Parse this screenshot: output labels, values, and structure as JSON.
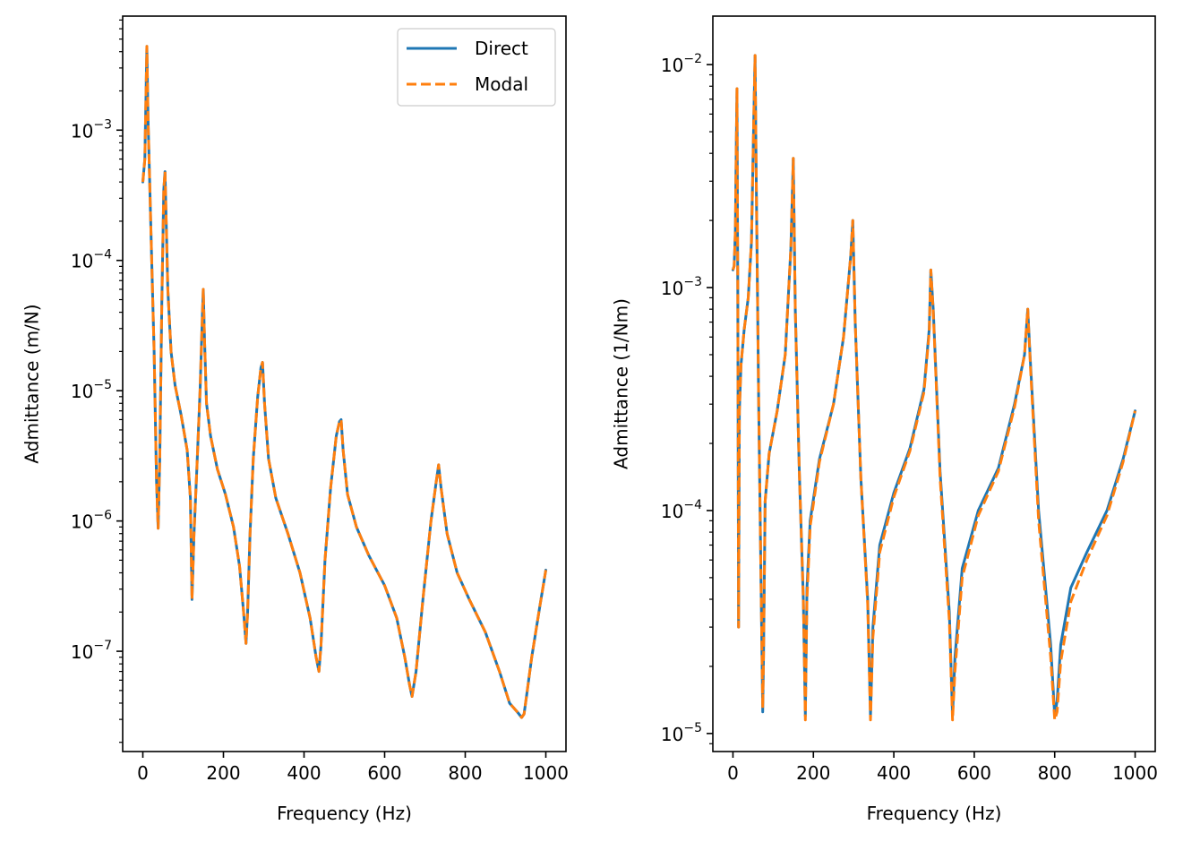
{
  "chart_data": [
    {
      "type": "line",
      "xlabel": "Frequency (Hz)",
      "ylabel": "Admittance (m/N)",
      "xlim": [
        -50,
        1050
      ],
      "ylim": [
        1.7e-08,
        0.0075
      ],
      "yscale": "log",
      "xticks": [
        0,
        200,
        400,
        600,
        800,
        1000
      ],
      "xtick_labels": [
        "0",
        "200",
        "400",
        "600",
        "800",
        "1000"
      ],
      "yticks_major": [
        {
          "value": 1e-07,
          "base": "10",
          "exp": "−7"
        },
        {
          "value": 1e-06,
          "base": "10",
          "exp": "−6"
        },
        {
          "value": 1e-05,
          "base": "10",
          "exp": "−5"
        },
        {
          "value": 0.0001,
          "base": "10",
          "exp": "−4"
        },
        {
          "value": 0.001,
          "base": "10",
          "exp": "−3"
        }
      ],
      "grid": false,
      "legend": {
        "placement": "upper-right",
        "entries": [
          "Direct",
          "Modal"
        ]
      },
      "series": [
        {
          "name": "Direct",
          "color": "#1f77b4",
          "style": "solid",
          "x": [
            0,
            5,
            10,
            13,
            17,
            22,
            28,
            34,
            38,
            42,
            47,
            52,
            55,
            58,
            62,
            70,
            80,
            95,
            110,
            118,
            122,
            127,
            134,
            142,
            148,
            150,
            153,
            158,
            168,
            185,
            205,
            225,
            240,
            250,
            256,
            260,
            266,
            274,
            285,
            293,
            297,
            302,
            312,
            330,
            360,
            390,
            415,
            430,
            437,
            442,
            452,
            466,
            480,
            488,
            492,
            497,
            508,
            530,
            560,
            600,
            630,
            650,
            662,
            668,
            678,
            695,
            715,
            728,
            734,
            740,
            755,
            780,
            810,
            850,
            885,
            910,
            930,
            940,
            946,
            952,
            965,
            985,
            1000
          ],
          "y": [
            0.0004,
            0.0006,
            0.0044,
            0.0012,
            0.0004,
            0.0001,
            2e-05,
            2e-06,
            8.8e-07,
            3e-06,
            4.5e-05,
            0.00035,
            0.00048,
            0.0002,
            6e-05,
            2e-05,
            1.1e-05,
            6.5e-06,
            3.5e-06,
            1.5e-06,
            2.5e-07,
            8e-07,
            2.5e-06,
            1e-05,
            4e-05,
            6e-05,
            2.5e-05,
            8e-06,
            4.5e-06,
            2.5e-06,
            1.6e-06,
            9e-07,
            4.5e-07,
            2e-07,
            1.15e-07,
            2e-07,
            8e-07,
            3e-06,
            9e-06,
            1.5e-05,
            1.65e-05,
            8e-06,
            3e-06,
            1.5e-06,
            8e-07,
            4e-07,
            1.8e-07,
            9e-08,
            7e-08,
            1.1e-07,
            5e-07,
            1.8e-06,
            4.5e-06,
            5.8e-06,
            6e-06,
            3.5e-06,
            1.6e-06,
            9e-07,
            5.5e-07,
            3.2e-07,
            1.8e-07,
            9e-08,
            5.5e-08,
            4.5e-08,
            7e-08,
            2.5e-07,
            1e-06,
            2e-06,
            2.7e-06,
            1.8e-06,
            8e-07,
            4e-07,
            2.5e-07,
            1.4e-07,
            7e-08,
            4e-08,
            3.4e-08,
            3.1e-08,
            3.3e-08,
            4.5e-08,
            9e-08,
            2.2e-07,
            4.2e-07
          ]
        },
        {
          "name": "Modal",
          "color": "#ff7f0e",
          "style": "dashed",
          "x": [
            0,
            5,
            10,
            13,
            17,
            22,
            28,
            34,
            38,
            42,
            47,
            52,
            55,
            58,
            62,
            70,
            80,
            95,
            110,
            118,
            122,
            127,
            134,
            142,
            148,
            150,
            153,
            158,
            168,
            185,
            205,
            225,
            240,
            250,
            256,
            260,
            266,
            274,
            285,
            293,
            297,
            302,
            312,
            330,
            360,
            390,
            415,
            430,
            437,
            442,
            452,
            466,
            480,
            488,
            492,
            497,
            508,
            530,
            560,
            600,
            630,
            650,
            662,
            668,
            678,
            695,
            715,
            728,
            734,
            740,
            755,
            780,
            810,
            850,
            885,
            910,
            930,
            940,
            946,
            952,
            965,
            985,
            1000
          ],
          "y": [
            0.0004,
            0.0006,
            0.0044,
            0.0012,
            0.0004,
            0.0001,
            2e-05,
            2e-06,
            8.8e-07,
            3e-06,
            4.5e-05,
            0.00035,
            0.00048,
            0.0002,
            6e-05,
            2e-05,
            1.1e-05,
            6.5e-06,
            3.5e-06,
            1.5e-06,
            2.5e-07,
            8e-07,
            2.5e-06,
            1e-05,
            4e-05,
            6e-05,
            2.5e-05,
            8e-06,
            4.5e-06,
            2.5e-06,
            1.6e-06,
            9e-07,
            4.5e-07,
            2e-07,
            1.15e-07,
            2e-07,
            8e-07,
            3e-06,
            9e-06,
            1.5e-05,
            1.65e-05,
            8e-06,
            3e-06,
            1.5e-06,
            8e-07,
            4e-07,
            1.8e-07,
            9e-08,
            7e-08,
            1.1e-07,
            5e-07,
            1.8e-06,
            4.5e-06,
            5.8e-06,
            6e-06,
            3.5e-06,
            1.6e-06,
            9e-07,
            5.5e-07,
            3.2e-07,
            1.8e-07,
            9e-08,
            5.5e-08,
            4.5e-08,
            7e-08,
            2.5e-07,
            1e-06,
            2e-06,
            2.7e-06,
            1.8e-06,
            8e-07,
            4e-07,
            2.5e-07,
            1.4e-07,
            7e-08,
            4e-08,
            3.4e-08,
            3.1e-08,
            3.3e-08,
            4.5e-08,
            9e-08,
            2.2e-07,
            4.2e-07
          ]
        }
      ]
    },
    {
      "type": "line",
      "xlabel": "Frequency (Hz)",
      "ylabel": "Admittance (1/Nm)",
      "xlim": [
        -50,
        1050
      ],
      "ylim": [
        8.3e-06,
        0.0165
      ],
      "yscale": "log",
      "xticks": [
        0,
        200,
        400,
        600,
        800,
        1000
      ],
      "xtick_labels": [
        "0",
        "200",
        "400",
        "600",
        "800",
        "1000"
      ],
      "yticks_major": [
        {
          "value": 1e-05,
          "base": "10",
          "exp": "−5"
        },
        {
          "value": 0.0001,
          "base": "10",
          "exp": "−4"
        },
        {
          "value": 0.001,
          "base": "10",
          "exp": "−3"
        },
        {
          "value": 0.01,
          "base": "10",
          "exp": "−2"
        }
      ],
      "grid": false,
      "series": [
        {
          "name": "Direct",
          "color": "#1f77b4",
          "style": "solid",
          "x": [
            0,
            3,
            6,
            8,
            10,
            12,
            14,
            16,
            20,
            28,
            38,
            46,
            52,
            55,
            58,
            64,
            70,
            74,
            76,
            80,
            90,
            110,
            130,
            144,
            150,
            155,
            165,
            175,
            180,
            184,
            192,
            215,
            250,
            275,
            293,
            298,
            304,
            318,
            335,
            342,
            348,
            365,
            400,
            440,
            475,
            488,
            492,
            498,
            515,
            538,
            546,
            552,
            570,
            610,
            660,
            700,
            725,
            733,
            740,
            760,
            790,
            800,
            806,
            815,
            840,
            880,
            930,
            970,
            1000
          ],
          "y": [
            0.0012,
            0.00125,
            0.0018,
            0.004,
            0.0078,
            0.001,
            3e-05,
            0.00028,
            0.00045,
            0.00065,
            0.0009,
            0.0016,
            0.006,
            0.011,
            0.003,
            0.0003,
            4.5e-05,
            1.25e-05,
            2.2e-05,
            0.00011,
            0.00018,
            0.00028,
            0.0005,
            0.0015,
            0.0038,
            0.0008,
            0.00015,
            4e-05,
            1.2e-05,
            4.5e-05,
            9e-05,
            0.00017,
            0.0003,
            0.0006,
            0.0014,
            0.002,
            0.0007,
            0.00014,
            4e-05,
            1.2e-05,
            3e-05,
            7e-05,
            0.00012,
            0.00019,
            0.00035,
            0.00065,
            0.0012,
            0.0008,
            0.00015,
            3.5e-05,
            1.2e-05,
            2.2e-05,
            5.5e-05,
            0.0001,
            0.000155,
            0.0003,
            0.0005,
            0.0008,
            0.00045,
            0.0001,
            2.5e-05,
            1.2e-05,
            1.4e-05,
            2.5e-05,
            4.5e-05,
            6.5e-05,
            0.0001,
            0.00017,
            0.00028
          ]
        },
        {
          "name": "Modal",
          "color": "#ff7f0e",
          "style": "dashed",
          "x": [
            0,
            3,
            6,
            8,
            10,
            12,
            14,
            16,
            20,
            28,
            38,
            46,
            52,
            55,
            58,
            64,
            70,
            74,
            76,
            80,
            90,
            110,
            130,
            144,
            150,
            155,
            165,
            175,
            180,
            184,
            192,
            215,
            250,
            275,
            293,
            298,
            304,
            318,
            335,
            342,
            348,
            365,
            400,
            440,
            475,
            488,
            492,
            498,
            515,
            538,
            546,
            552,
            570,
            610,
            660,
            700,
            725,
            733,
            740,
            760,
            790,
            800,
            806,
            815,
            840,
            880,
            930,
            970,
            1000
          ],
          "y": [
            0.0012,
            0.00125,
            0.0018,
            0.004,
            0.0078,
            0.001,
            3e-05,
            0.00028,
            0.00045,
            0.00065,
            0.0009,
            0.0016,
            0.006,
            0.011,
            0.003,
            0.0003,
            4.5e-05,
            1.3e-05,
            2.2e-05,
            0.00011,
            0.00018,
            0.00028,
            0.0005,
            0.0015,
            0.0038,
            0.0008,
            0.00015,
            4e-05,
            1.15e-05,
            4e-05,
            8.5e-05,
            0.000165,
            0.0003,
            0.0006,
            0.0014,
            0.002,
            0.0007,
            0.00014,
            3.8e-05,
            1.15e-05,
            2.7e-05,
            6.5e-05,
            0.000115,
            0.000185,
            0.00034,
            0.00063,
            0.0012,
            0.00078,
            0.00014,
            3.2e-05,
            1.15e-05,
            1.9e-05,
            5e-05,
            9.5e-05,
            0.00015,
            0.00029,
            0.0005,
            0.0008,
            0.00043,
            9e-05,
            2.2e-05,
            1.15e-05,
            1.25e-05,
            2.1e-05,
            3.9e-05,
            6e-05,
            9.5e-05,
            0.000165,
            0.00028
          ]
        }
      ]
    }
  ]
}
